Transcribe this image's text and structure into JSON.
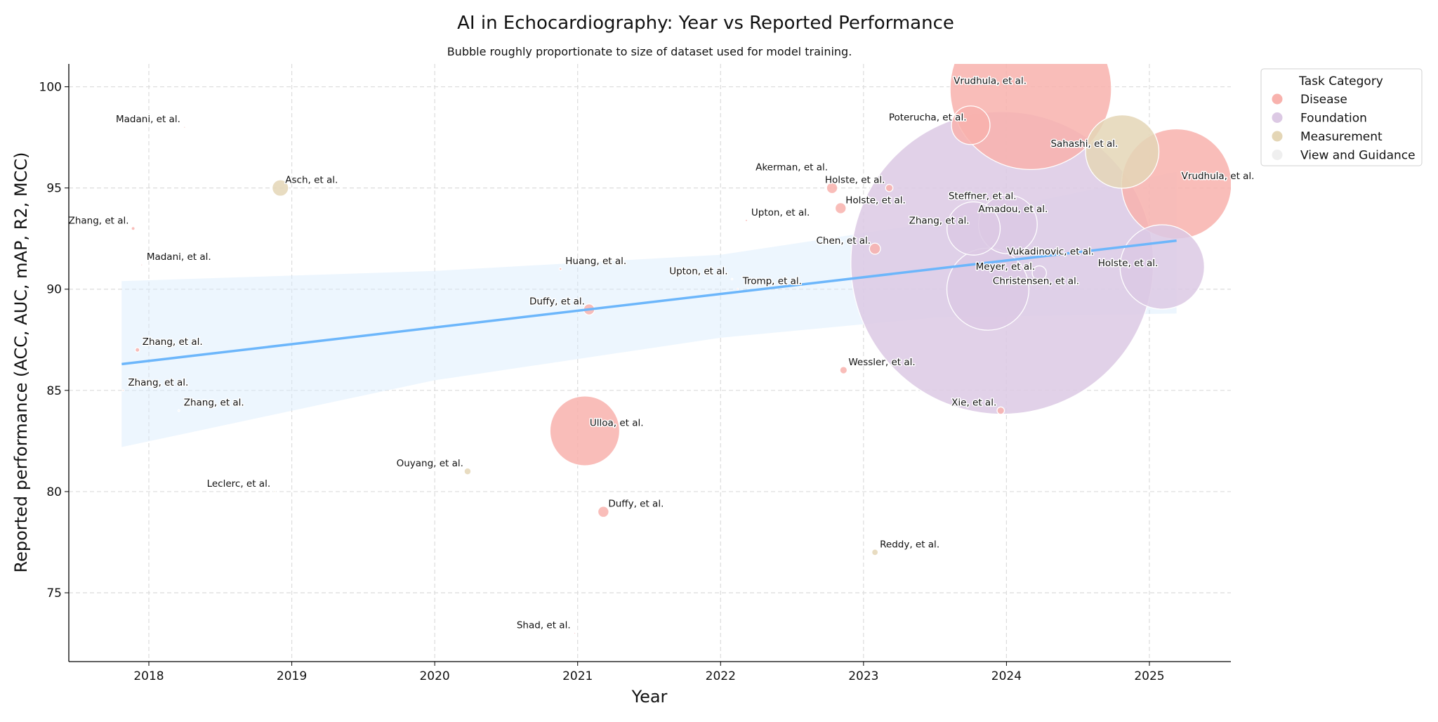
{
  "chart_data": {
    "type": "scatter",
    "title": "AI in Echocardiography: Year vs Reported Performance",
    "subtitle": "Bubble roughly proportionate to size of dataset used for model training.",
    "xlabel": "Year",
    "ylabel": "Reported performance (ACC, AUC, mAP, R2, MCC)",
    "xlim": [
      2017.44,
      2025.57
    ],
    "ylim": [
      71.6,
      101.13
    ],
    "xticks": [
      2018,
      2019,
      2020,
      2021,
      2022,
      2023,
      2024,
      2025
    ],
    "yticks": [
      75,
      80,
      85,
      90,
      95,
      100
    ],
    "grid": true,
    "legend": {
      "title": "Task Category",
      "placement": "outside-top-right",
      "entries": [
        {
          "name": "Disease",
          "color": "#f8b2ad"
        },
        {
          "name": "Foundation",
          "color": "#dcc9e4"
        },
        {
          "name": "Measurement",
          "color": "#e4d6b6"
        },
        {
          "name": "View and Guidance",
          "color": "#efefef"
        }
      ]
    },
    "points": [
      {
        "label": "Madani, et al.",
        "x": 2018.25,
        "y": 98.0,
        "size": 0.3,
        "category": "Disease",
        "side": "left"
      },
      {
        "label": "Zhang, et al.",
        "x": 2017.89,
        "y": 93.0,
        "size": 4,
        "category": "Disease",
        "side": "left"
      },
      {
        "label": "Madani, et al.",
        "x": 2017.95,
        "y": 91.2,
        "size": 0.5,
        "category": "Disease",
        "side": "right"
      },
      {
        "label": "Zhang, et al.",
        "x": 2017.92,
        "y": 87.0,
        "size": 6,
        "category": "Disease",
        "side": "right"
      },
      {
        "label": "Zhang, et al.",
        "x": 2017.82,
        "y": 85.0,
        "size": 0.5,
        "category": "Disease",
        "side": "right"
      },
      {
        "label": "Zhang, et al.",
        "x": 2018.21,
        "y": 84.0,
        "size": 1,
        "category": "View and Guidance",
        "side": "right"
      },
      {
        "label": "Leclerc, et al.",
        "x": 2018.88,
        "y": 80.0,
        "size": 0.5,
        "category": "Measurement",
        "side": "left"
      },
      {
        "label": "Asch, et al.",
        "x": 2018.92,
        "y": 95.0,
        "size": 80,
        "category": "Measurement",
        "side": "right"
      },
      {
        "label": "Huang, et al.",
        "x": 2020.88,
        "y": 91.0,
        "size": 2,
        "category": "Disease",
        "side": "right"
      },
      {
        "label": "Ouyang, et al.",
        "x": 2020.23,
        "y": 81.0,
        "size": 14,
        "category": "Measurement",
        "side": "left"
      },
      {
        "label": "Duffy, et al.",
        "x": 2021.08,
        "y": 89.0,
        "size": 36,
        "category": "Disease",
        "side": "left"
      },
      {
        "label": "Ulloa, et al.",
        "x": 2021.05,
        "y": 83.0,
        "size": 1444,
        "category": "Disease",
        "side": "right"
      },
      {
        "label": "Duffy, et al.",
        "x": 2021.18,
        "y": 79.0,
        "size": 36,
        "category": "Disease",
        "side": "right"
      },
      {
        "label": "Shad, et al.",
        "x": 2020.98,
        "y": 73.0,
        "size": 0.3,
        "category": "Disease",
        "side": "left"
      },
      {
        "label": "Upton, et al.",
        "x": 2022.18,
        "y": 93.4,
        "size": 1.5,
        "category": "Disease",
        "side": "right"
      },
      {
        "label": "Upton, et al.",
        "x": 2022.08,
        "y": 90.5,
        "size": 0.5,
        "category": "View and Guidance",
        "side": "left"
      },
      {
        "label": "Tromp, et al.",
        "x": 2022.12,
        "y": 90.0,
        "size": 0.6,
        "category": "Disease",
        "side": "right"
      },
      {
        "label": "Akerman, et al.",
        "x": 2022.78,
        "y": 95.0,
        "size": 36,
        "category": "Disease",
        "side": "left"
      },
      {
        "label": "Holste, et al.",
        "x": 2023.18,
        "y": 95.0,
        "size": 16,
        "category": "Disease",
        "side": "left"
      },
      {
        "label": "Holste, et al.",
        "x": 2022.84,
        "y": 94.0,
        "size": 36,
        "category": "Disease",
        "side": "right"
      },
      {
        "label": "Chen, et al.",
        "x": 2023.08,
        "y": 92.0,
        "size": 36,
        "category": "Disease",
        "side": "left"
      },
      {
        "label": "Wessler, et al.",
        "x": 2022.86,
        "y": 86.0,
        "size": 16,
        "category": "Disease",
        "side": "right"
      },
      {
        "label": "Reddy, et al.",
        "x": 2023.08,
        "y": 77.0,
        "size": 12,
        "category": "Measurement",
        "side": "right"
      },
      {
        "label": "Xie, et al.",
        "x": 2023.96,
        "y": 84.0,
        "size": 16,
        "category": "Disease",
        "side": "left"
      },
      {
        "label": "Vukadinovic, et al.",
        "x": 2023.97,
        "y": 91.3,
        "size": 27225,
        "category": "Foundation",
        "side": "right"
      },
      {
        "label": "Poterucha, et al.",
        "x": 2023.75,
        "y": 98.1,
        "size": 441,
        "category": "Disease",
        "side": "left"
      },
      {
        "label": "Vrudhula, et al.",
        "x": 2024.17,
        "y": 99.9,
        "size": 7744,
        "category": "Disease",
        "side": "left"
      },
      {
        "label": "Sahashi, et al.",
        "x": 2024.81,
        "y": 96.8,
        "size": 1600,
        "category": "Measurement",
        "side": "left"
      },
      {
        "label": "Vrudhula, et al.",
        "x": 2025.19,
        "y": 95.2,
        "size": 3600,
        "category": "Disease",
        "side": "right"
      },
      {
        "label": "Holste, et al.",
        "x": 2025.09,
        "y": 91.1,
        "size": 2116,
        "category": "Foundation",
        "side": "left"
      },
      {
        "label": "Steffner, et al.",
        "x": 2024.05,
        "y": 94.0,
        "size": 0.5,
        "category": "View and Guidance",
        "side": "left"
      },
      {
        "label": "Zhang, et al.",
        "x": 2023.77,
        "y": 93.0,
        "size": 841,
        "category": "Foundation",
        "side": "left"
      },
      {
        "label": "Amadou, et al.",
        "x": 2024.01,
        "y": 93.2,
        "size": 1024,
        "category": "Foundation",
        "side": "left"
      },
      {
        "label": "Meyer, et al.",
        "x": 2024.23,
        "y": 90.8,
        "size": 60,
        "category": "Foundation",
        "side": "left"
      },
      {
        "label": "Christensen, et al.",
        "x": 2023.87,
        "y": 90.0,
        "size": 2000,
        "category": "Foundation",
        "side": "right"
      }
    ],
    "regression": {
      "color": "#6cb6fb",
      "x": [
        2017.81,
        2025.19
      ],
      "y": [
        86.3,
        92.4
      ],
      "ci_x": [
        2017.81,
        2020.0,
        2022.0,
        2023.5,
        2025.19
      ],
      "ci_lower": [
        82.2,
        85.5,
        87.6,
        88.6,
        88.8
      ],
      "ci_upper": [
        90.4,
        90.9,
        91.7,
        93.3,
        95.8
      ]
    }
  }
}
